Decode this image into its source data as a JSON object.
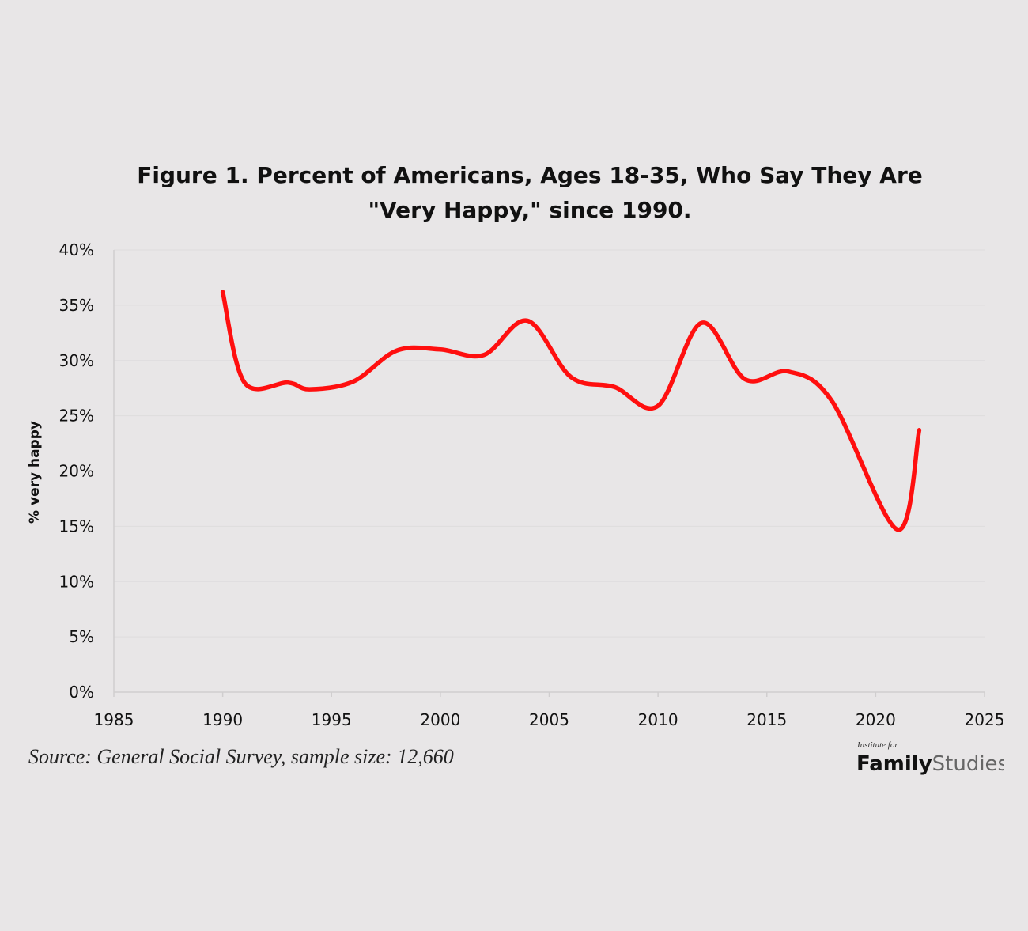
{
  "chart_data": {
    "type": "line",
    "title": "Figure 1. Percent of Americans, Ages 18-35, Who Say They Are \"Very Happy,\" since 1990.",
    "xlabel": "",
    "ylabel": "% very happy",
    "xlim": [
      1985,
      2025
    ],
    "ylim": [
      0,
      40
    ],
    "x_ticks": [
      1985,
      1990,
      1995,
      2000,
      2005,
      2010,
      2015,
      2020,
      2025
    ],
    "y_ticks": [
      "0%",
      "5%",
      "10%",
      "15%",
      "20%",
      "25%",
      "30%",
      "35%",
      "40%"
    ],
    "y_tick_values": [
      0,
      5,
      10,
      15,
      20,
      25,
      30,
      35,
      40
    ],
    "grid": true,
    "smooth": true,
    "series": [
      {
        "name": "% very happy",
        "color": "#ff0f0f",
        "x": [
          1990,
          1991,
          1993,
          1994,
          1996,
          1998,
          2000,
          2002,
          2004,
          2006,
          2008,
          2010,
          2012,
          2014,
          2016,
          2018,
          2021,
          2022
        ],
        "values": [
          36.2,
          28.0,
          28.0,
          27.4,
          28.1,
          30.9,
          31.0,
          30.5,
          33.6,
          28.5,
          27.6,
          25.9,
          33.4,
          28.3,
          29.0,
          26.3,
          14.7,
          23.7
        ]
      }
    ]
  },
  "source_note": "Source: General Social Survey, sample size: 12,660",
  "logo": {
    "small_text": "Institute for",
    "main_bold": "Family",
    "main_light": "Studies"
  },
  "colors": {
    "background": "#e8e6e7",
    "line": "#ff0f0f",
    "grid": "#dedcdd",
    "axis": "#d0cecf"
  }
}
